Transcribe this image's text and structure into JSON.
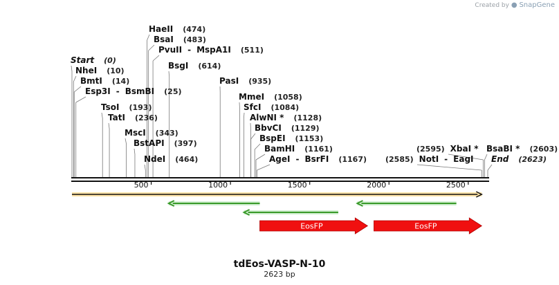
{
  "brand": {
    "prefix": "Created by",
    "name": "SnapGene"
  },
  "map": {
    "title": "tdEos-VASP-N-10",
    "length_text": "2623 bp",
    "length": 2623
  },
  "ruler": {
    "ticks": [
      "500",
      "1000",
      "1500",
      "2000",
      "2500"
    ],
    "tick_values": [
      500,
      1000,
      1500,
      2000,
      2500
    ]
  },
  "sites": [
    {
      "name": "Start",
      "pos": "(0)",
      "value": 0
    },
    {
      "name": "NheI",
      "pos": "(10)",
      "value": 10
    },
    {
      "name": "BmtI",
      "pos": "(14)",
      "value": 14
    },
    {
      "name": "Esp3I",
      "name2": "BsmBI",
      "pos": "(25)",
      "value": 25
    },
    {
      "name": "TsoI",
      "pos": "(193)",
      "value": 193
    },
    {
      "name": "TatI",
      "pos": "(236)",
      "value": 236
    },
    {
      "name": "MscI",
      "pos": "(343)",
      "value": 343
    },
    {
      "name": "BstAPI",
      "pos": "(397)",
      "value": 397
    },
    {
      "name": "NdeI",
      "pos": "(464)",
      "value": 464
    },
    {
      "name": "HaeII",
      "pos": "(474)",
      "value": 474
    },
    {
      "name": "BsaI",
      "pos": "(483)",
      "value": 483
    },
    {
      "name": "PvuII",
      "name2": "MspA1I",
      "pos": "(511)",
      "value": 511
    },
    {
      "name": "BsgI",
      "pos": "(614)",
      "value": 614
    },
    {
      "name": "PasI",
      "pos": "(935)",
      "value": 935
    },
    {
      "name": "MmeI",
      "pos": "(1058)",
      "value": 1058
    },
    {
      "name": "SfcI",
      "pos": "(1084)",
      "value": 1084
    },
    {
      "name": "AlwNI *",
      "pos": "(1128)",
      "value": 1128
    },
    {
      "name": "BbvCI",
      "pos": "(1129)",
      "value": 1129
    },
    {
      "name": "BspEI",
      "pos": "(1153)",
      "value": 1153
    },
    {
      "name": "BamHI",
      "pos": "(1161)",
      "value": 1161
    },
    {
      "name": "AgeI",
      "name2": "BsrFI",
      "pos": "(1167)",
      "value": 1167
    },
    {
      "name": "NotI",
      "name2": "EagI",
      "pos": "(2585)",
      "value": 2585
    },
    {
      "name": "XbaI *",
      "pos": "(2595)",
      "value": 2595
    },
    {
      "name": "BsaBI *",
      "pos": "(2603)",
      "value": 2603
    },
    {
      "name": "End",
      "pos": "(2623)",
      "value": 2623
    }
  ],
  "features": [
    {
      "name": "",
      "type": "orange-bar",
      "start": 0,
      "end": 2585,
      "direction": "forward"
    },
    {
      "name": "",
      "type": "green-arrow",
      "start": 610,
      "end": 1185,
      "direction": "reverse"
    },
    {
      "name": "",
      "type": "green-arrow",
      "start": 1085,
      "end": 1680,
      "direction": "reverse"
    },
    {
      "name": "",
      "type": "green-arrow",
      "start": 1800,
      "end": 2425,
      "direction": "reverse"
    },
    {
      "name": "EosFP",
      "type": "red-arrow",
      "start": 1185,
      "end": 1865,
      "direction": "forward"
    },
    {
      "name": "EosFP",
      "type": "red-arrow",
      "start": 1905,
      "end": 2585,
      "direction": "forward"
    }
  ],
  "colors": {
    "orange": "#f5a623",
    "green": "#3a9a2a",
    "red": "#f01010"
  }
}
